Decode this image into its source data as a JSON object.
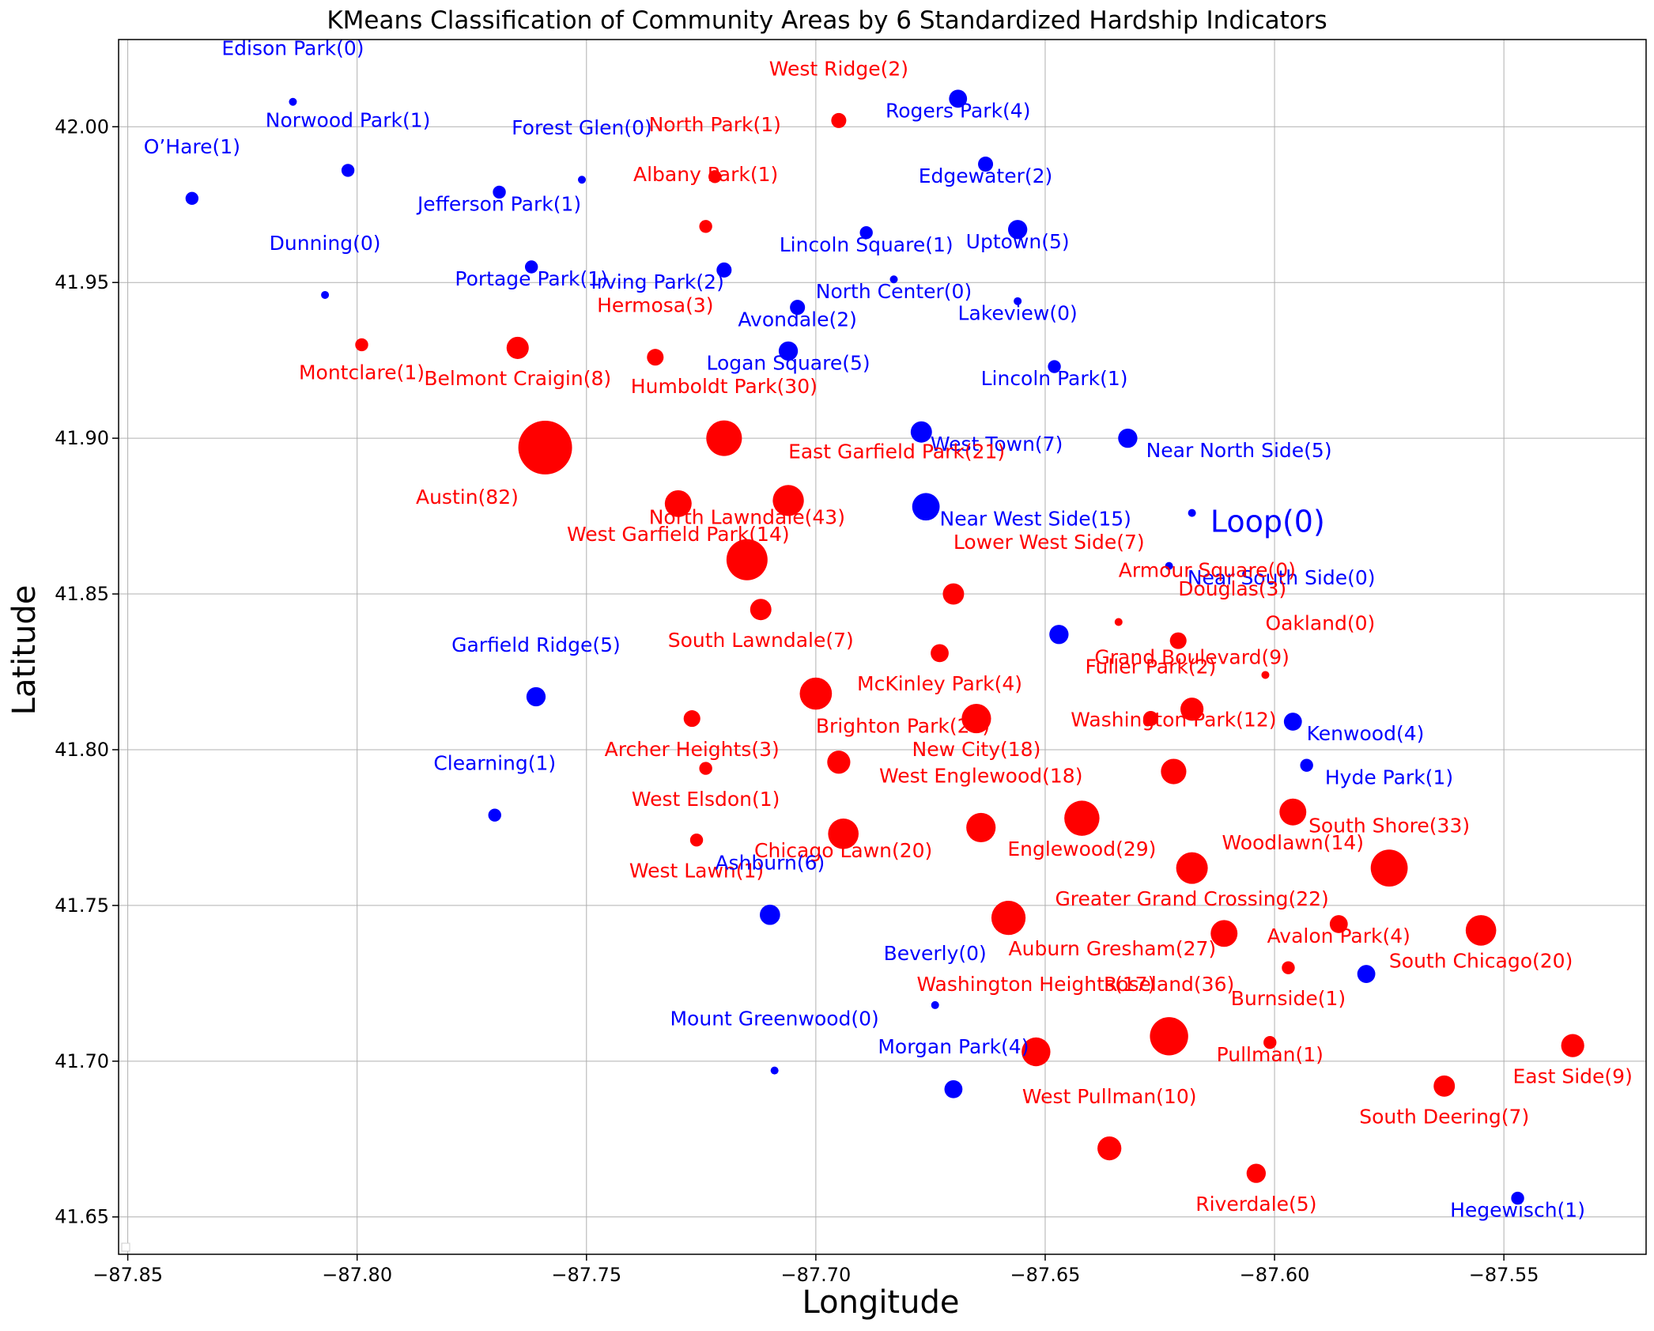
{
  "chart_data": {
    "type": "scatter",
    "title": "KMeans Classification of Community Areas by 6 Standardized Hardship Indicators",
    "xlabel": "Longitude",
    "ylabel": "Latitude",
    "xlim": [
      -87.852,
      -87.519
    ],
    "ylim": [
      41.638,
      42.028
    ],
    "xticks": [
      -87.85,
      -87.8,
      -87.75,
      -87.7,
      -87.65,
      -87.6,
      -87.55
    ],
    "xtick_labels": [
      "−87.85",
      "−87.80",
      "−87.75",
      "−87.70",
      "−87.65",
      "−87.60",
      "−87.55"
    ],
    "yticks": [
      41.65,
      41.7,
      41.75,
      41.8,
      41.85,
      41.9,
      41.95,
      42.0
    ],
    "ytick_labels": [
      "41.65",
      "41.70",
      "41.75",
      "41.80",
      "41.85",
      "41.90",
      "41.95",
      "42.00"
    ],
    "grid": true,
    "legend": "bottom-left (empty)",
    "colors": {
      "red_cluster": "#ff0000",
      "blue_cluster": "#0000ff",
      "grid": "#b0b0b0",
      "text": "#000000"
    },
    "points": [
      {
        "label": "Edison Park(0)",
        "x": -87.814,
        "y": 42.008,
        "v": 0,
        "c": "blue",
        "lx": -87.814,
        "ly": 42.023,
        "la": "middle"
      },
      {
        "label": "Norwood Park(1)",
        "x": -87.802,
        "y": 41.986,
        "v": 1,
        "c": "blue",
        "lx": -87.802,
        "ly": 42.0,
        "la": "middle"
      },
      {
        "label": "O’Hare(1)",
        "x": -87.836,
        "y": 41.977,
        "v": 1,
        "c": "blue",
        "lx": -87.836,
        "ly": 41.9915,
        "la": "middle"
      },
      {
        "label": "Forest Glen(0)",
        "x": -87.751,
        "y": 41.983,
        "v": 0,
        "c": "blue",
        "lx": -87.751,
        "ly": 41.9975,
        "la": "middle"
      },
      {
        "label": "Jefferson Park(1)",
        "x": -87.769,
        "y": 41.979,
        "v": 1,
        "c": "blue",
        "lx": -87.769,
        "ly": 41.973,
        "la": "middle"
      },
      {
        "label": "West Ridge(2)",
        "x": -87.695,
        "y": 42.002,
        "v": 2,
        "c": "red",
        "lx": -87.695,
        "ly": 42.0165,
        "la": "middle"
      },
      {
        "label": "Rogers Park(4)",
        "x": -87.669,
        "y": 42.009,
        "v": 4,
        "c": "blue",
        "lx": -87.669,
        "ly": 42.003,
        "la": "middle"
      },
      {
        "label": "North Park(1)",
        "x": -87.722,
        "y": 41.984,
        "v": 1,
        "c": "red",
        "lx": -87.722,
        "ly": 41.9985,
        "la": "middle"
      },
      {
        "label": "Edgewater(2)",
        "x": -87.663,
        "y": 41.988,
        "v": 2,
        "c": "blue",
        "lx": -87.663,
        "ly": 41.982,
        "la": "middle"
      },
      {
        "label": "Albany Park(1)",
        "x": -87.724,
        "y": 41.968,
        "v": 1,
        "c": "red",
        "lx": -87.724,
        "ly": 41.9825,
        "la": "middle"
      },
      {
        "label": "Lincoln Square(1)",
        "x": -87.689,
        "y": 41.966,
        "v": 1,
        "c": "blue",
        "lx": -87.689,
        "ly": 41.96,
        "la": "middle"
      },
      {
        "label": "Uptown(5)",
        "x": -87.656,
        "y": 41.967,
        "v": 5,
        "c": "blue",
        "lx": -87.656,
        "ly": 41.961,
        "la": "middle"
      },
      {
        "label": "Dunning(0)",
        "x": -87.807,
        "y": 41.946,
        "v": 0,
        "c": "blue",
        "lx": -87.807,
        "ly": 41.9605,
        "la": "middle"
      },
      {
        "label": "Portage Park(1)",
        "x": -87.762,
        "y": 41.955,
        "v": 1,
        "c": "blue",
        "lx": -87.762,
        "ly": 41.949,
        "la": "middle"
      },
      {
        "label": "Irving Park(2)",
        "x": -87.72,
        "y": 41.954,
        "v": 2,
        "c": "blue",
        "lx": -87.72,
        "ly": 41.948,
        "la": "right"
      },
      {
        "label": "North Center(0)",
        "x": -87.683,
        "y": 41.951,
        "v": 0,
        "c": "blue",
        "lx": -87.683,
        "ly": 41.945,
        "la": "middle"
      },
      {
        "label": "Lakeview(0)",
        "x": -87.656,
        "y": 41.944,
        "v": 0,
        "c": "blue",
        "lx": -87.656,
        "ly": 41.938,
        "la": "middle"
      },
      {
        "label": "Avondale(2)",
        "x": -87.704,
        "y": 41.942,
        "v": 2,
        "c": "blue",
        "lx": -87.704,
        "ly": 41.936,
        "la": "middle"
      },
      {
        "label": "Hermosa(3)",
        "x": -87.735,
        "y": 41.926,
        "v": 3,
        "c": "red",
        "lx": -87.735,
        "ly": 41.9405,
        "la": "middle"
      },
      {
        "label": "Montclare(1)",
        "x": -87.799,
        "y": 41.93,
        "v": 1,
        "c": "red",
        "lx": -87.799,
        "ly": 41.919,
        "la": "middle"
      },
      {
        "label": "Belmont Craigin(8)",
        "x": -87.765,
        "y": 41.929,
        "v": 8,
        "c": "red",
        "lx": -87.765,
        "ly": 41.917,
        "la": "middle"
      },
      {
        "label": "Logan Square(5)",
        "x": -87.706,
        "y": 41.928,
        "v": 5,
        "c": "blue",
        "lx": -87.706,
        "ly": 41.922,
        "la": "middle"
      },
      {
        "label": "Lincoln Park(1)",
        "x": -87.648,
        "y": 41.923,
        "v": 1,
        "c": "blue",
        "lx": -87.648,
        "ly": 41.917,
        "la": "middle"
      },
      {
        "label": "Humboldt Park(30)",
        "x": -87.72,
        "y": 41.9,
        "v": 30,
        "c": "red",
        "lx": -87.72,
        "ly": 41.9145,
        "la": "middle"
      },
      {
        "label": "Austin(82)",
        "x": -87.759,
        "y": 41.897,
        "v": 82,
        "c": "red",
        "lx": -87.776,
        "ly": 41.879,
        "la": "middle"
      },
      {
        "label": "West Town(7)",
        "x": -87.677,
        "y": 41.902,
        "v": 7,
        "c": "blue",
        "lx": -87.675,
        "ly": 41.896,
        "la": "left"
      },
      {
        "label": "Near North Side(5)",
        "x": -87.632,
        "y": 41.9,
        "v": 5,
        "c": "blue",
        "lx": -87.628,
        "ly": 41.894,
        "la": "left"
      },
      {
        "label": "East Garfield Park(21)",
        "x": -87.706,
        "y": 41.88,
        "v": 21,
        "c": "red",
        "lx": -87.706,
        "ly": 41.8935,
        "la": "left"
      },
      {
        "label": "West Garfield Park(14)",
        "x": -87.73,
        "y": 41.879,
        "v": 14,
        "c": "red",
        "lx": -87.73,
        "ly": 41.867,
        "la": "middle"
      },
      {
        "label": "Near West Side(15)",
        "x": -87.676,
        "y": 41.878,
        "v": 15,
        "c": "blue",
        "lx": -87.673,
        "ly": 41.872,
        "la": "left"
      },
      {
        "label": "Loop(0)",
        "x": -87.618,
        "y": 41.876,
        "v": 0,
        "c": "blue",
        "lx": -87.614,
        "ly": 41.87,
        "la": "left",
        "big": true
      },
      {
        "label": "North Lawndale(43)",
        "x": -87.715,
        "y": 41.861,
        "v": 43,
        "c": "red",
        "lx": -87.715,
        "ly": 41.8725,
        "la": "middle"
      },
      {
        "label": "Near South Side(0)",
        "x": -87.623,
        "y": 41.859,
        "v": 0,
        "c": "blue",
        "lx": -87.619,
        "ly": 41.853,
        "la": "left"
      },
      {
        "label": "Lower West Side(7)",
        "x": -87.67,
        "y": 41.85,
        "v": 7,
        "c": "red",
        "lx": -87.67,
        "ly": 41.8645,
        "la": "left"
      },
      {
        "label": "South Lawndale(7)",
        "x": -87.712,
        "y": 41.845,
        "v": 7,
        "c": "red",
        "lx": -87.712,
        "ly": 41.833,
        "la": "middle"
      },
      {
        "label": "Armour Square(0)",
        "x": -87.634,
        "y": 41.841,
        "v": 0,
        "c": "red",
        "lx": -87.634,
        "ly": 41.8555,
        "la": "left"
      },
      {
        "label": "Douglas(3)",
        "x": -87.621,
        "y": 41.835,
        "v": 3,
        "c": "red",
        "lx": -87.621,
        "ly": 41.8495,
        "la": "left"
      },
      {
        "label": "(unlabeled blue point)",
        "x": -87.647,
        "y": 41.837,
        "v": 5,
        "c": "blue",
        "nolabel": true
      },
      {
        "label": "McKinley Park(4)",
        "x": -87.673,
        "y": 41.831,
        "v": 4,
        "c": "red",
        "lx": -87.673,
        "ly": 41.819,
        "la": "middle"
      },
      {
        "label": "Oakland(0)",
        "x": -87.602,
        "y": 41.824,
        "v": 0,
        "c": "red",
        "lx": -87.602,
        "ly": 41.8385,
        "la": "left"
      },
      {
        "label": "Garfield Ridge(5)",
        "x": -87.761,
        "y": 41.817,
        "v": 5,
        "c": "blue",
        "lx": -87.761,
        "ly": 41.8315,
        "la": "middle"
      },
      {
        "label": "Brighton Park(23)",
        "x": -87.7,
        "y": 41.818,
        "v": 23,
        "c": "red",
        "lx": -87.7,
        "ly": 41.8055,
        "la": "left"
      },
      {
        "label": "Grand Boulevard(9)",
        "x": -87.618,
        "y": 41.813,
        "v": 9,
        "c": "red",
        "lx": -87.618,
        "ly": 41.8275,
        "la": "middle"
      },
      {
        "label": "Fuller Park(2)",
        "x": -87.627,
        "y": 41.81,
        "v": 2,
        "c": "red",
        "lx": -87.627,
        "ly": 41.8245,
        "la": "middle"
      },
      {
        "label": "New City(18)",
        "x": -87.665,
        "y": 41.81,
        "v": 18,
        "c": "red",
        "lx": -87.665,
        "ly": 41.798,
        "la": "middle"
      },
      {
        "label": "Archer Heights(3)",
        "x": -87.727,
        "y": 41.81,
        "v": 3,
        "c": "red",
        "lx": -87.727,
        "ly": 41.798,
        "la": "middle"
      },
      {
        "label": "Kenwood(4)",
        "x": -87.596,
        "y": 41.809,
        "v": 4,
        "c": "blue",
        "lx": -87.593,
        "ly": 41.803,
        "la": "left"
      },
      {
        "label": "Washington Park(12)",
        "x": -87.622,
        "y": 41.793,
        "v": 12,
        "c": "red",
        "lx": -87.622,
        "ly": 41.8075,
        "la": "middle"
      },
      {
        "label": "Hyde Park(1)",
        "x": -87.593,
        "y": 41.795,
        "v": 1,
        "c": "blue",
        "lx": -87.589,
        "ly": 41.789,
        "la": "left"
      },
      {
        "label": "(unlabeled red point)",
        "x": -87.695,
        "y": 41.796,
        "v": 9,
        "c": "red",
        "nolabel": true
      },
      {
        "label": "West Elsdon(1)",
        "x": -87.724,
        "y": 41.794,
        "v": 1,
        "c": "red",
        "lx": -87.724,
        "ly": 41.782,
        "la": "middle"
      },
      {
        "label": "Clearning(1)",
        "x": -87.77,
        "y": 41.779,
        "v": 1,
        "c": "blue",
        "lx": -87.77,
        "ly": 41.7935,
        "la": "middle"
      },
      {
        "label": "West Englewood(18)",
        "x": -87.664,
        "y": 41.775,
        "v": 18,
        "c": "red",
        "lx": -87.664,
        "ly": 41.7895,
        "la": "middle"
      },
      {
        "label": "Englewood(29)",
        "x": -87.642,
        "y": 41.778,
        "v": 29,
        "c": "red",
        "lx": -87.642,
        "ly": 41.766,
        "la": "middle"
      },
      {
        "label": "Woodlawn(14)",
        "x": -87.596,
        "y": 41.78,
        "v": 14,
        "c": "red",
        "lx": -87.596,
        "ly": 41.768,
        "la": "middle"
      },
      {
        "label": "West Lawn(1)",
        "x": -87.726,
        "y": 41.771,
        "v": 1,
        "c": "red",
        "lx": -87.726,
        "ly": 41.759,
        "la": "middle"
      },
      {
        "label": "Chicago Lawn(20)",
        "x": -87.694,
        "y": 41.773,
        "v": 20,
        "c": "red",
        "lx": -87.694,
        "ly": 41.7655,
        "la": "middle"
      },
      {
        "label": "South Shore(33)",
        "x": -87.575,
        "y": 41.762,
        "v": 33,
        "c": "red",
        "lx": -87.575,
        "ly": 41.7735,
        "la": "middle"
      },
      {
        "label": "Greater Grand Crossing(22)",
        "x": -87.618,
        "y": 41.762,
        "v": 22,
        "c": "red",
        "lx": -87.618,
        "ly": 41.75,
        "la": "middle"
      },
      {
        "label": "Ashburn(6)",
        "x": -87.71,
        "y": 41.747,
        "v": 6,
        "c": "blue",
        "lx": -87.71,
        "ly": 41.7615,
        "la": "middle"
      },
      {
        "label": "Auburn Gresham(27)",
        "x": -87.658,
        "y": 41.746,
        "v": 27,
        "c": "red",
        "lx": -87.658,
        "ly": 41.734,
        "la": "left"
      },
      {
        "label": "(unlabeled red point 2)",
        "x": -87.611,
        "y": 41.741,
        "v": 14,
        "c": "red",
        "nolabel": true
      },
      {
        "label": "Avalon Park(4)",
        "x": -87.586,
        "y": 41.744,
        "v": 4,
        "c": "red",
        "lx": -87.586,
        "ly": 41.738,
        "la": "middle"
      },
      {
        "label": "South Chicago(20)",
        "x": -87.555,
        "y": 41.742,
        "v": 20,
        "c": "red",
        "lx": -87.555,
        "ly": 41.73,
        "la": "middle"
      },
      {
        "label": "Burnside(1)",
        "x": -87.597,
        "y": 41.73,
        "v": 1,
        "c": "red",
        "lx": -87.597,
        "ly": 41.718,
        "la": "middle"
      },
      {
        "label": "(unlabeled blue point 2)",
        "x": -87.58,
        "y": 41.728,
        "v": 4,
        "c": "blue",
        "nolabel": true
      },
      {
        "label": "Beverly(0)",
        "x": -87.674,
        "y": 41.718,
        "v": 0,
        "c": "blue",
        "lx": -87.674,
        "ly": 41.7325,
        "la": "middle"
      },
      {
        "label": "Washington Heights(17)",
        "x": -87.652,
        "y": 41.703,
        "v": 17,
        "c": "red",
        "lx": -87.652,
        "ly": 41.7225,
        "la": "middle"
      },
      {
        "label": "Roseland(36)",
        "x": -87.623,
        "y": 41.708,
        "v": 36,
        "c": "red",
        "lx": -87.623,
        "ly": 41.7225,
        "la": "middle"
      },
      {
        "label": "Pullman(1)",
        "x": -87.601,
        "y": 41.706,
        "v": 1,
        "c": "red",
        "lx": -87.601,
        "ly": 41.7,
        "la": "middle"
      },
      {
        "label": "East Side(9)",
        "x": -87.535,
        "y": 41.705,
        "v": 9,
        "c": "red",
        "lx": -87.535,
        "ly": 41.693,
        "la": "middle"
      },
      {
        "label": "Mount Greenwood(0)",
        "x": -87.709,
        "y": 41.697,
        "v": 0,
        "c": "blue",
        "lx": -87.709,
        "ly": 41.7115,
        "la": "middle"
      },
      {
        "label": "South Deering(7)",
        "x": -87.563,
        "y": 41.692,
        "v": 7,
        "c": "red",
        "lx": -87.563,
        "ly": 41.68,
        "la": "middle"
      },
      {
        "label": "Morgan Park(4)",
        "x": -87.67,
        "y": 41.691,
        "v": 4,
        "c": "blue",
        "lx": -87.67,
        "ly": 41.7025,
        "la": "middle"
      },
      {
        "label": "West Pullman(10)",
        "x": -87.636,
        "y": 41.672,
        "v": 10,
        "c": "red",
        "lx": -87.636,
        "ly": 41.6865,
        "la": "middle"
      },
      {
        "label": "Riverdale(5)",
        "x": -87.604,
        "y": 41.664,
        "v": 5,
        "c": "red",
        "lx": -87.604,
        "ly": 41.652,
        "la": "middle"
      },
      {
        "label": "Hegewisch(1)",
        "x": -87.547,
        "y": 41.656,
        "v": 1,
        "c": "blue",
        "lx": -87.547,
        "ly": 41.65,
        "la": "middle"
      }
    ]
  }
}
